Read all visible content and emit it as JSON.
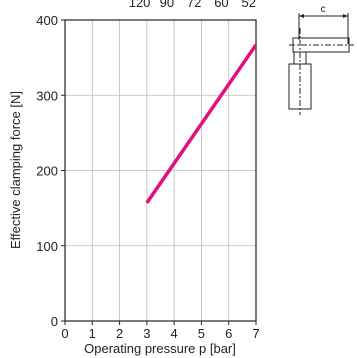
{
  "chart_data": {
    "type": "line",
    "title": "",
    "xlabel": "Operating pressure p [bar]",
    "ylabel": "Effective clamping force [N]",
    "xlim": [
      0,
      7
    ],
    "ylim": [
      0,
      400
    ],
    "x_ticks": [
      "0",
      "1",
      "2",
      "3",
      "4",
      "5",
      "6",
      "7"
    ],
    "y_ticks": [
      "0",
      "100",
      "200",
      "300",
      "400"
    ],
    "top_ticks": [
      {
        "x": 2,
        "label": "120"
      },
      {
        "x": 3,
        "label": "90"
      },
      {
        "x": 4,
        "label": "72"
      },
      {
        "x": 5,
        "label": "60"
      },
      {
        "x": 6,
        "label": "52"
      }
    ],
    "grid": true,
    "series": [
      {
        "x": [
          3,
          7
        ],
        "y": [
          157,
          367
        ],
        "color": "#e0107e"
      }
    ]
  },
  "diagram": {
    "dimension_label": "c"
  },
  "colors": {
    "line": "#e0107e",
    "axis": "#222222",
    "grid": "#bbbbbb"
  }
}
